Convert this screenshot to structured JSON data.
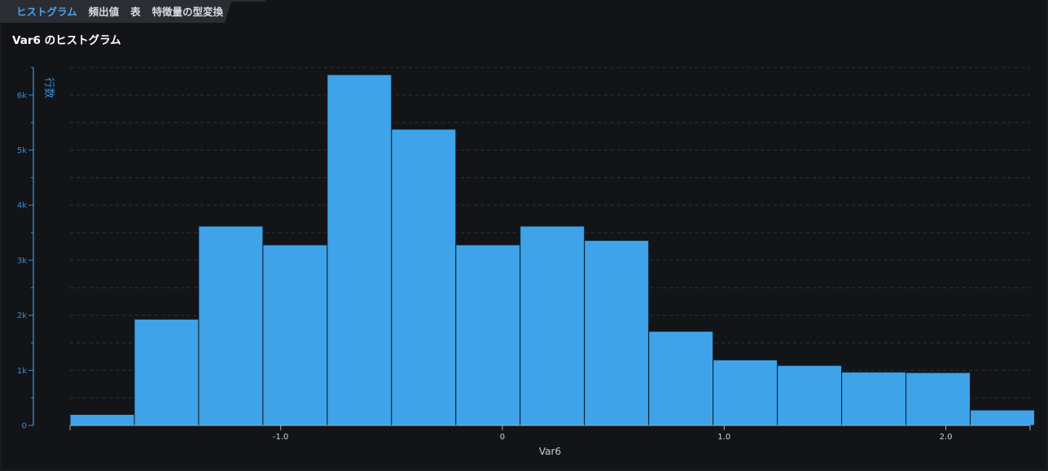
{
  "tabs": [
    {
      "label": "ヒストグラム",
      "active": true
    },
    {
      "label": "頻出値",
      "active": false
    },
    {
      "label": "表",
      "active": false
    },
    {
      "label": "特徴量の型変換",
      "active": false
    }
  ],
  "colors": {
    "background": "#121418",
    "bar_fill": "#3ea3e8",
    "bar_edge": "#0f1c28",
    "y_axis": "#3a8fd0",
    "x_axis": "#a9acb2",
    "grid": "#2f3339",
    "active_tab": "#4aa3e8"
  },
  "chart_data": {
    "type": "bar",
    "title": "Var6 のヒストグラム",
    "xlabel": "Var6",
    "ylabel": "行数",
    "x_ticks": [
      {
        "value": -1.0,
        "label": "-1.0"
      },
      {
        "value": 0,
        "label": "0"
      },
      {
        "value": 1.0,
        "label": "1.0"
      },
      {
        "value": 2.0,
        "label": "2.0"
      }
    ],
    "y_ticks": [
      {
        "value": 0,
        "label": "0"
      },
      {
        "value": 1000,
        "label": "1k"
      },
      {
        "value": 2000,
        "label": "2k"
      },
      {
        "value": 3000,
        "label": "3k"
      },
      {
        "value": 4000,
        "label": "4k"
      },
      {
        "value": 5000,
        "label": "5k"
      },
      {
        "value": 6000,
        "label": "6k"
      }
    ],
    "xlim": [
      -1.95,
      2.38
    ],
    "ylim": [
      0,
      6500
    ],
    "grid": true,
    "bins": [
      {
        "start": -1.95,
        "end": -1.66,
        "count": 200
      },
      {
        "start": -1.66,
        "end": -1.37,
        "count": 1930
      },
      {
        "start": -1.37,
        "end": -1.08,
        "count": 3620
      },
      {
        "start": -1.08,
        "end": -0.79,
        "count": 3280
      },
      {
        "start": -0.79,
        "end": -0.5,
        "count": 6370
      },
      {
        "start": -0.5,
        "end": -0.21,
        "count": 5380
      },
      {
        "start": -0.21,
        "end": 0.08,
        "count": 3280
      },
      {
        "start": 0.08,
        "end": 0.37,
        "count": 3620
      },
      {
        "start": 0.37,
        "end": 0.66,
        "count": 3360
      },
      {
        "start": 0.66,
        "end": 0.95,
        "count": 1710
      },
      {
        "start": 0.95,
        "end": 1.24,
        "count": 1190
      },
      {
        "start": 1.24,
        "end": 1.53,
        "count": 1090
      },
      {
        "start": 1.53,
        "end": 1.82,
        "count": 970
      },
      {
        "start": 1.82,
        "end": 2.11,
        "count": 960
      },
      {
        "start": 2.11,
        "end": 2.4,
        "count": 280
      }
    ]
  }
}
